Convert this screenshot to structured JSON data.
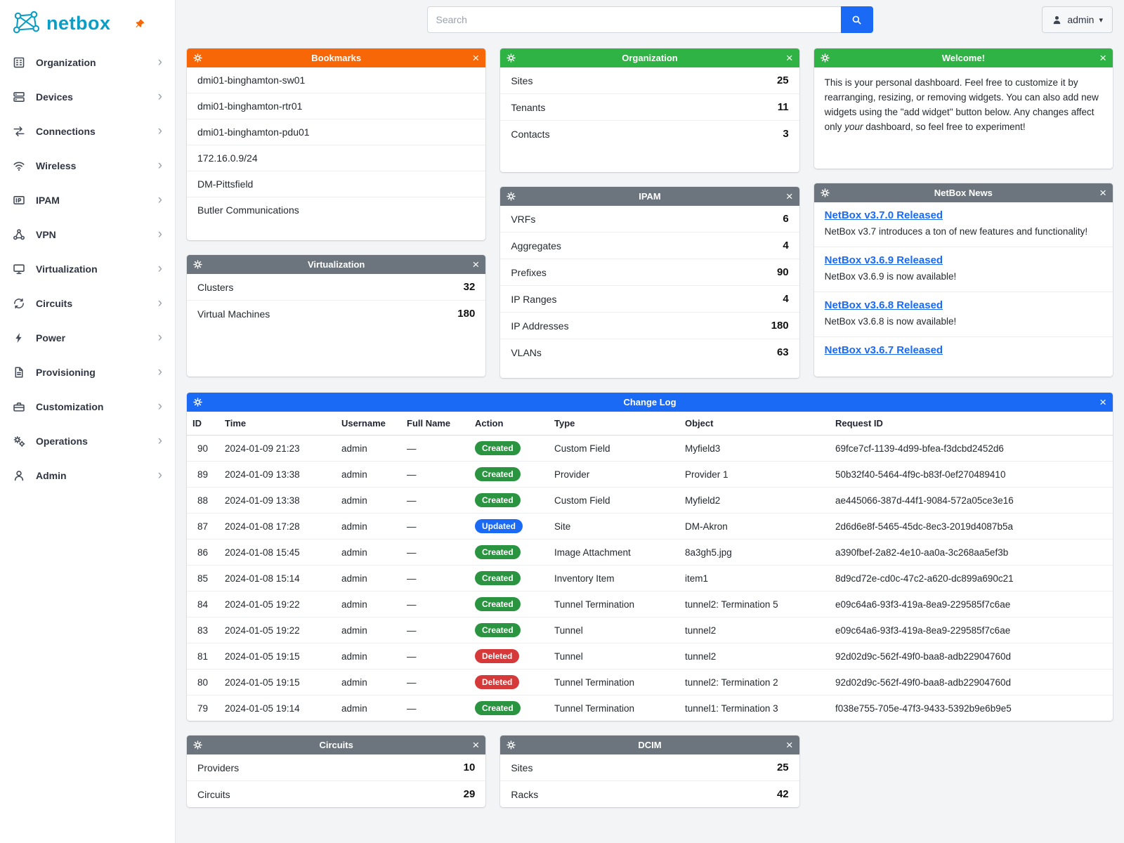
{
  "brand": {
    "name": "netbox",
    "color": "#0a9ec7",
    "pin_color": "#f76707"
  },
  "topbar": {
    "search_placeholder": "Search",
    "user": "admin"
  },
  "sidebar": {
    "items": [
      {
        "label": "Organization",
        "icon": "building"
      },
      {
        "label": "Devices",
        "icon": "server"
      },
      {
        "label": "Connections",
        "icon": "cables"
      },
      {
        "label": "Wireless",
        "icon": "wifi"
      },
      {
        "label": "IPAM",
        "icon": "ip"
      },
      {
        "label": "VPN",
        "icon": "network"
      },
      {
        "label": "Virtualization",
        "icon": "monitor"
      },
      {
        "label": "Circuits",
        "icon": "loop"
      },
      {
        "label": "Power",
        "icon": "bolt"
      },
      {
        "label": "Provisioning",
        "icon": "document"
      },
      {
        "label": "Customization",
        "icon": "toolbox"
      },
      {
        "label": "Operations",
        "icon": "gears"
      },
      {
        "label": "Admin",
        "icon": "user"
      }
    ]
  },
  "widgets": {
    "bookmarks": {
      "title": "Bookmarks",
      "header_color": "#f76707",
      "items": [
        "dmi01-binghamton-sw01",
        "dmi01-binghamton-rtr01",
        "dmi01-binghamton-pdu01",
        "172.16.0.9/24",
        "DM-Pittsfield",
        "Butler Communications"
      ]
    },
    "organization": {
      "title": "Organization",
      "header_color": "#2fb344",
      "stats": [
        {
          "label": "Sites",
          "value": "25"
        },
        {
          "label": "Tenants",
          "value": "11"
        },
        {
          "label": "Contacts",
          "value": "3"
        }
      ]
    },
    "welcome": {
      "title": "Welcome!",
      "header_color": "#2fb344",
      "text_parts": {
        "before": "This is your personal dashboard. Feel free to customize it by rearranging, resizing, or removing widgets. You can also add new widgets using the \"add widget\" button below. Any changes affect only ",
        "italic": "your",
        "after": " dashboard, so feel free to experiment!"
      }
    },
    "virtualization": {
      "title": "Virtualization",
      "header_color": "#6c757d",
      "stats": [
        {
          "label": "Clusters",
          "value": "32"
        },
        {
          "label": "Virtual Machines",
          "value": "180"
        }
      ]
    },
    "ipam": {
      "title": "IPAM",
      "header_color": "#6c757d",
      "stats": [
        {
          "label": "VRFs",
          "value": "6"
        },
        {
          "label": "Aggregates",
          "value": "4"
        },
        {
          "label": "Prefixes",
          "value": "90"
        },
        {
          "label": "IP Ranges",
          "value": "4"
        },
        {
          "label": "IP Addresses",
          "value": "180"
        },
        {
          "label": "VLANs",
          "value": "63"
        }
      ]
    },
    "news": {
      "title": "NetBox News",
      "header_color": "#6c757d",
      "entries": [
        {
          "title": "NetBox v3.7.0 Released",
          "body": "NetBox v3.7 introduces a ton of new features and functionality!"
        },
        {
          "title": "NetBox v3.6.9 Released",
          "body": "NetBox v3.6.9 is now available!"
        },
        {
          "title": "NetBox v3.6.8 Released",
          "body": "NetBox v3.6.8 is now available!"
        },
        {
          "title": "NetBox v3.6.7 Released",
          "body": ""
        }
      ]
    },
    "changelog": {
      "title": "Change Log",
      "header_color": "#1a6af5",
      "columns": [
        "ID",
        "Time",
        "Username",
        "Full Name",
        "Action",
        "Type",
        "Object",
        "Request ID"
      ],
      "badge_colors": {
        "Created": "#2a9440",
        "Updated": "#1a6af5",
        "Deleted": "#d63939"
      },
      "rows": [
        {
          "id": "90",
          "time": "2024-01-09 21:23",
          "username": "admin",
          "full_name": "—",
          "action": "Created",
          "type": "Custom Field",
          "object": "Myfield3",
          "object_link": "link",
          "request_id": "69fce7cf-1139-4d99-bfea-f3dcbd2452d6"
        },
        {
          "id": "89",
          "time": "2024-01-09 13:38",
          "username": "admin",
          "full_name": "—",
          "action": "Created",
          "type": "Provider",
          "object": "Provider 1",
          "object_link": "link",
          "request_id": "50b32f40-5464-4f9c-b83f-0ef270489410"
        },
        {
          "id": "88",
          "time": "2024-01-09 13:38",
          "username": "admin",
          "full_name": "—",
          "action": "Created",
          "type": "Custom Field",
          "object": "Myfield2",
          "object_link": "link",
          "request_id": "ae445066-387d-44f1-9084-572a05ce3e16"
        },
        {
          "id": "87",
          "time": "2024-01-08 17:28",
          "username": "admin",
          "full_name": "—",
          "action": "Updated",
          "type": "Site",
          "object": "DM-Akron",
          "object_link": "link",
          "request_id": "2d6d6e8f-5465-45dc-8ec3-2019d4087b5a"
        },
        {
          "id": "86",
          "time": "2024-01-08 15:45",
          "username": "admin",
          "full_name": "—",
          "action": "Created",
          "type": "Image Attachment",
          "object": "8a3gh5.jpg",
          "object_link": "plain",
          "request_id": "a390fbef-2a82-4e10-aa0a-3c268aa5ef3b"
        },
        {
          "id": "85",
          "time": "2024-01-08 15:14",
          "username": "admin",
          "full_name": "—",
          "action": "Created",
          "type": "Inventory Item",
          "object": "item1",
          "object_link": "link",
          "request_id": "8d9cd72e-cd0c-47c2-a620-dc899a690c21"
        },
        {
          "id": "84",
          "time": "2024-01-05 19:22",
          "username": "admin",
          "full_name": "—",
          "action": "Created",
          "type": "Tunnel Termination",
          "object": "tunnel2: Termination 5",
          "object_link": "link",
          "request_id": "e09c64a6-93f3-419a-8ea9-229585f7c6ae"
        },
        {
          "id": "83",
          "time": "2024-01-05 19:22",
          "username": "admin",
          "full_name": "—",
          "action": "Created",
          "type": "Tunnel",
          "object": "tunnel2",
          "object_link": "link",
          "request_id": "e09c64a6-93f3-419a-8ea9-229585f7c6ae"
        },
        {
          "id": "81",
          "time": "2024-01-05 19:15",
          "username": "admin",
          "full_name": "—",
          "action": "Deleted",
          "type": "Tunnel",
          "object": "tunnel2",
          "object_link": "plain",
          "request_id": "92d02d9c-562f-49f0-baa8-adb22904760d"
        },
        {
          "id": "80",
          "time": "2024-01-05 19:15",
          "username": "admin",
          "full_name": "—",
          "action": "Deleted",
          "type": "Tunnel Termination",
          "object": "tunnel2: Termination 2",
          "object_link": "plain",
          "request_id": "92d02d9c-562f-49f0-baa8-adb22904760d"
        },
        {
          "id": "79",
          "time": "2024-01-05 19:14",
          "username": "admin",
          "full_name": "—",
          "action": "Created",
          "type": "Tunnel Termination",
          "object": "tunnel1: Termination 3",
          "object_link": "link",
          "request_id": "f038e755-705e-47f3-9433-5392b9e6b9e5"
        }
      ]
    },
    "circuits": {
      "title": "Circuits",
      "header_color": "#6c757d",
      "stats": [
        {
          "label": "Providers",
          "value": "10"
        },
        {
          "label": "Circuits",
          "value": "29"
        }
      ]
    },
    "dcim": {
      "title": "DCIM",
      "header_color": "#6c757d",
      "stats": [
        {
          "label": "Sites",
          "value": "25"
        },
        {
          "label": "Racks",
          "value": "42"
        }
      ]
    }
  }
}
